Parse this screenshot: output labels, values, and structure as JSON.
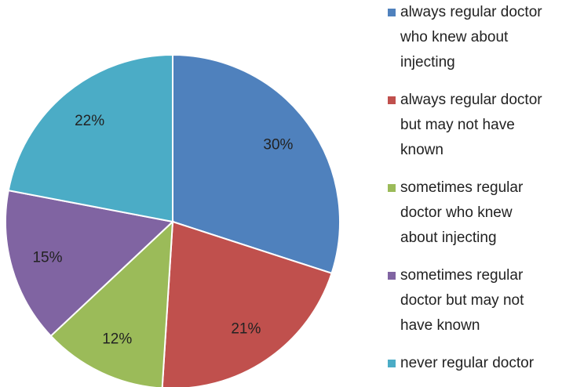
{
  "chart_data": {
    "type": "pie",
    "categories": [
      "always regular doctor who knew about injecting",
      "always regular doctor but may not have known",
      "sometimes regular doctor who knew about injecting",
      "sometimes regular doctor but may not have known",
      "never regular doctor"
    ],
    "values": [
      30,
      21,
      12,
      15,
      22
    ],
    "value_labels": [
      "30%",
      "21%",
      "12%",
      "15%",
      "22%"
    ],
    "colors": [
      "#4f81bd",
      "#c0504d",
      "#9bbb59",
      "#8064a2",
      "#4bacc6"
    ]
  }
}
